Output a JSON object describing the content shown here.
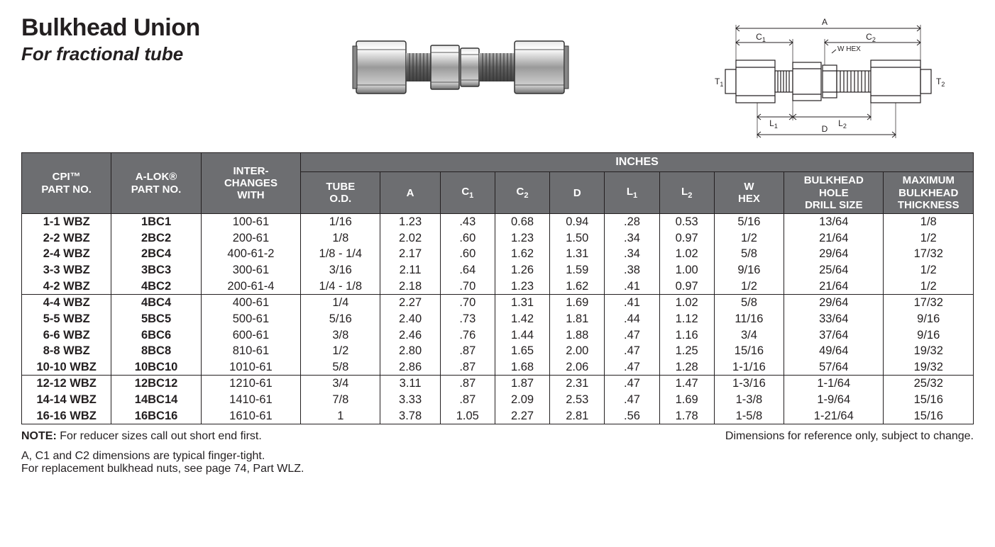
{
  "title": "Bulkhead Union",
  "subtitle": "For fractional tube",
  "table": {
    "spanner": "INCHES",
    "columns": [
      "CPI™\nPART NO.",
      "A-LOK®\nPART NO.",
      "INTER-\nCHANGES\nWITH",
      "TUBE\nO.D.",
      "A",
      "C₁",
      "C₂",
      "D",
      "L₁",
      "L₂",
      "W\nHEX",
      "BULKHEAD\nHOLE\nDRILL SIZE",
      "MAXIMUM\nBULKHEAD\nTHICKNESS"
    ],
    "group_breaks_after": [
      4,
      9,
      12
    ],
    "rows": [
      [
        "1-1 WBZ",
        "1BC1",
        "100-61",
        "1/16",
        "1.23",
        ".43",
        "0.68",
        "0.94",
        ".28",
        "0.53",
        "5/16",
        "13/64",
        "1/8"
      ],
      [
        "2-2 WBZ",
        "2BC2",
        "200-61",
        "1/8",
        "2.02",
        ".60",
        "1.23",
        "1.50",
        ".34",
        "0.97",
        "1/2",
        "21/64",
        "1/2"
      ],
      [
        "2-4 WBZ",
        "2BC4",
        "400-61-2",
        "1/8 - 1/4",
        "2.17",
        ".60",
        "1.62",
        "1.31",
        ".34",
        "1.02",
        "5/8",
        "29/64",
        "17/32"
      ],
      [
        "3-3 WBZ",
        "3BC3",
        "300-61",
        "3/16",
        "2.11",
        ".64",
        "1.26",
        "1.59",
        ".38",
        "1.00",
        "9/16",
        "25/64",
        "1/2"
      ],
      [
        "4-2 WBZ",
        "4BC2",
        "200-61-4",
        "1/4 - 1/8",
        "2.18",
        ".70",
        "1.23",
        "1.62",
        ".41",
        "0.97",
        "1/2",
        "21/64",
        "1/2"
      ],
      [
        "4-4 WBZ",
        "4BC4",
        "400-61",
        "1/4",
        "2.27",
        ".70",
        "1.31",
        "1.69",
        ".41",
        "1.02",
        "5/8",
        "29/64",
        "17/32"
      ],
      [
        "5-5 WBZ",
        "5BC5",
        "500-61",
        "5/16",
        "2.40",
        ".73",
        "1.42",
        "1.81",
        ".44",
        "1.12",
        "11/16",
        "33/64",
        "9/16"
      ],
      [
        "6-6 WBZ",
        "6BC6",
        "600-61",
        "3/8",
        "2.46",
        ".76",
        "1.44",
        "1.88",
        ".47",
        "1.16",
        "3/4",
        "37/64",
        "9/16"
      ],
      [
        "8-8 WBZ",
        "8BC8",
        "810-61",
        "1/2",
        "2.80",
        ".87",
        "1.65",
        "2.00",
        ".47",
        "1.25",
        "15/16",
        "49/64",
        "19/32"
      ],
      [
        "10-10 WBZ",
        "10BC10",
        "1010-61",
        "5/8",
        "2.86",
        ".87",
        "1.68",
        "2.06",
        ".47",
        "1.28",
        "1-1/16",
        "57/64",
        "19/32"
      ],
      [
        "12-12 WBZ",
        "12BC12",
        "1210-61",
        "3/4",
        "3.11",
        ".87",
        "1.87",
        "2.31",
        ".47",
        "1.47",
        "1-3/16",
        "1-1/64",
        "25/32"
      ],
      [
        "14-14 WBZ",
        "14BC14",
        "1410-61",
        "7/8",
        "3.33",
        ".87",
        "2.09",
        "2.53",
        ".47",
        "1.69",
        "1-3/8",
        "1-9/64",
        "15/16"
      ],
      [
        "16-16 WBZ",
        "16BC16",
        "1610-61",
        "1",
        "3.78",
        "1.05",
        "2.27",
        "2.81",
        ".56",
        "1.78",
        "1-5/8",
        "1-21/64",
        "15/16"
      ]
    ]
  },
  "notes": {
    "note_label": "NOTE:",
    "note_text": " For reducer sizes call out short end first.",
    "dims_note": "A, C1 and C2 dimensions are typical finger-tight.",
    "replacement_note": "For replacement bulkhead nuts, see page 74, Part WLZ.",
    "reference_note": "Dimensions for reference only, subject to change."
  },
  "diagram_labels": {
    "A": "A",
    "C1": "C",
    "C1_sub": "1",
    "C2": "C",
    "C2_sub": "2",
    "WHEX": "W HEX",
    "T1": "T",
    "T1_sub": "1",
    "T2": "T",
    "T2_sub": "2",
    "L1": "L",
    "L1_sub": "1",
    "L2": "L",
    "L2_sub": "2",
    "D": "D"
  },
  "styling": {
    "header_bg": "#6d6e71",
    "header_fg": "#ffffff",
    "border_color": "#231f20",
    "text_color": "#231f20",
    "background": "#ffffff",
    "col_widths_pct": [
      9,
      9,
      10,
      8,
      6,
      5.5,
      5.5,
      5.5,
      5.5,
      5.5,
      7,
      10,
      9
    ]
  }
}
